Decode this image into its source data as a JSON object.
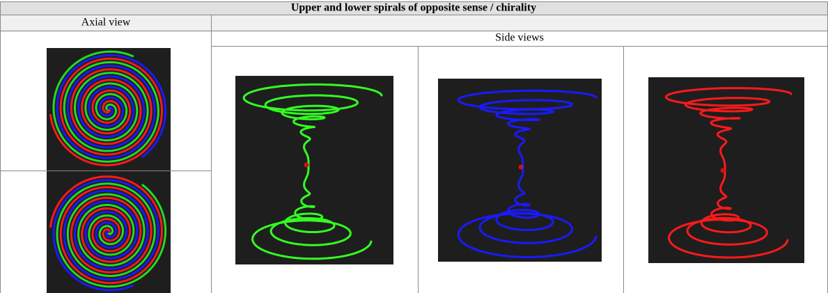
{
  "header": {
    "title": "Upper and lower spirals of opposite sense / chirality"
  },
  "columns": [
    "Axial view",
    "Side views"
  ]
}
